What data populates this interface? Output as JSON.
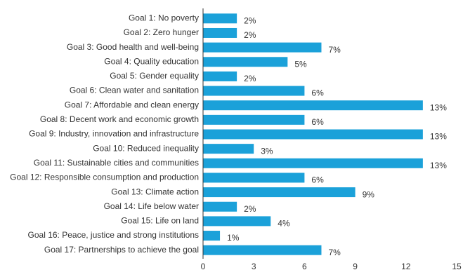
{
  "chart_data": {
    "type": "bar",
    "orientation": "horizontal",
    "categories": [
      "Goal 1: No poverty",
      "Goal 2: Zero hunger",
      "Goal 3: Good health and well-being",
      "Goal 4: Quality education",
      "Goal 5: Gender equality",
      "Goal 6: Clean water and sanitation",
      "Goal 7: Affordable and clean energy",
      "Goal 8: Decent work and economic growth",
      "Goal 9: Industry, innovation and infrastructure",
      "Goal 10: Reduced inequality",
      "Goal 11: Sustainable cities and communities",
      "Goal 12: Responsible consumption and production",
      "Goal 13: Climate action",
      "Goal 14: Life below water",
      "Goal 15: Life on land",
      "Goal 16: Peace, justice and strong institutions",
      "Goal 17: Partnerships to achieve the goal"
    ],
    "values": [
      2,
      2,
      7,
      5,
      2,
      6,
      13,
      6,
      13,
      3,
      13,
      6,
      9,
      2,
      4,
      1,
      7
    ],
    "value_labels": [
      "2%",
      "2%",
      "7%",
      "5%",
      "2%",
      "6%",
      "13%",
      "6%",
      "13%",
      "3%",
      "13%",
      "6%",
      "9%",
      "2%",
      "4%",
      "1%",
      "7%"
    ],
    "color": "#1ba1d9",
    "xlim": [
      0,
      15
    ],
    "xticks": [
      0,
      3,
      6,
      9,
      12,
      15
    ],
    "grid": false
  }
}
